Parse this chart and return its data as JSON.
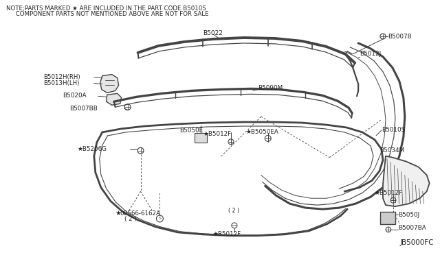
{
  "bg_color": "#ffffff",
  "lc": "#444444",
  "tc": "#222222",
  "note_line1": "NOTE;PARTS MARKED ★ ARE INCLUDED IN THE PART CODE B5010S",
  "note_line2": "     COMPONENT PARTS NOT MENTIONED ABOVE ARE NOT FOR SALE",
  "diagram_code": "JB5000FC",
  "figsize": [
    6.4,
    3.72
  ],
  "dpi": 100
}
